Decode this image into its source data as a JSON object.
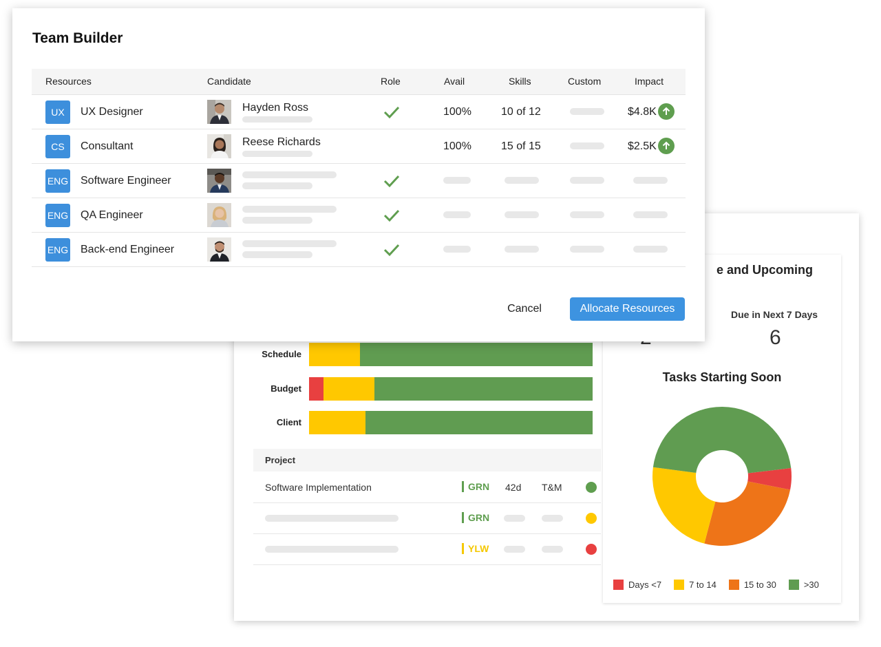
{
  "modal": {
    "title": "Team Builder",
    "columns": {
      "resources": "Resources",
      "candidate": "Candidate",
      "role": "Role",
      "avail": "Avail",
      "skills": "Skills",
      "custom": "Custom",
      "impact": "Impact"
    },
    "rows": [
      {
        "badge": "UX",
        "resource": "UX Designer",
        "candidate": "Hayden Ross",
        "role_ok": true,
        "avail": "100%",
        "skills": "10 of 12",
        "impact": "$4.8K",
        "impact_trend": "up"
      },
      {
        "badge": "CS",
        "resource": "Consultant",
        "candidate": "Reese Richards",
        "role_ok": false,
        "avail": "100%",
        "skills": "15 of 15",
        "impact": "$2.5K",
        "impact_trend": "up"
      },
      {
        "badge": "ENG",
        "resource": "Software Engineer",
        "candidate": "",
        "role_ok": true
      },
      {
        "badge": "ENG",
        "resource": "QA Engineer",
        "candidate": "",
        "role_ok": true
      },
      {
        "badge": "ENG",
        "resource": "Back-end Engineer",
        "candidate": "",
        "role_ok": true
      }
    ],
    "cancel_label": "Cancel",
    "allocate_label": "Allocate Resources"
  },
  "health": {
    "rows": [
      {
        "label": "Schedule",
        "segments": [
          {
            "color": "#ffc800",
            "pct": 18
          },
          {
            "color": "#609c51",
            "pct": 82
          }
        ]
      },
      {
        "label": "Budget",
        "segments": [
          {
            "color": "#e84040",
            "pct": 5
          },
          {
            "color": "#ffc800",
            "pct": 18
          },
          {
            "color": "#609c51",
            "pct": 77
          }
        ]
      },
      {
        "label": "Client",
        "segments": [
          {
            "color": "#ffc800",
            "pct": 20
          },
          {
            "color": "#609c51",
            "pct": 80
          }
        ]
      }
    ]
  },
  "projects": {
    "header": "Project",
    "rows": [
      {
        "name": "Software Implementation",
        "status": "GRN",
        "status_color": "#5f9e4f",
        "duration": "42d",
        "type": "T&M",
        "dot_color": "#5f9e4f"
      },
      {
        "name": "",
        "status": "GRN",
        "status_color": "#5f9e4f",
        "dot_color": "#ffc800"
      },
      {
        "name": "",
        "status": "YLW",
        "status_color": "#f5c800",
        "dot_color": "#e84040"
      }
    ]
  },
  "overdue": {
    "title": "e and Upcoming",
    "due_label": "Due in Next 7 Days",
    "due_value": "6",
    "other_value": "2"
  },
  "tasks_chart": {
    "title": "Tasks Starting Soon"
  },
  "chart_data": {
    "type": "pie",
    "title": "Tasks Starting Soon",
    "categories": [
      "Days <7",
      "7 to 14",
      "15 to 30",
      ">30"
    ],
    "values": [
      5,
      23,
      26,
      46
    ],
    "colors": [
      "#e84040",
      "#ffc800",
      "#ee7418",
      "#609c51"
    ],
    "legend_position": "bottom"
  }
}
